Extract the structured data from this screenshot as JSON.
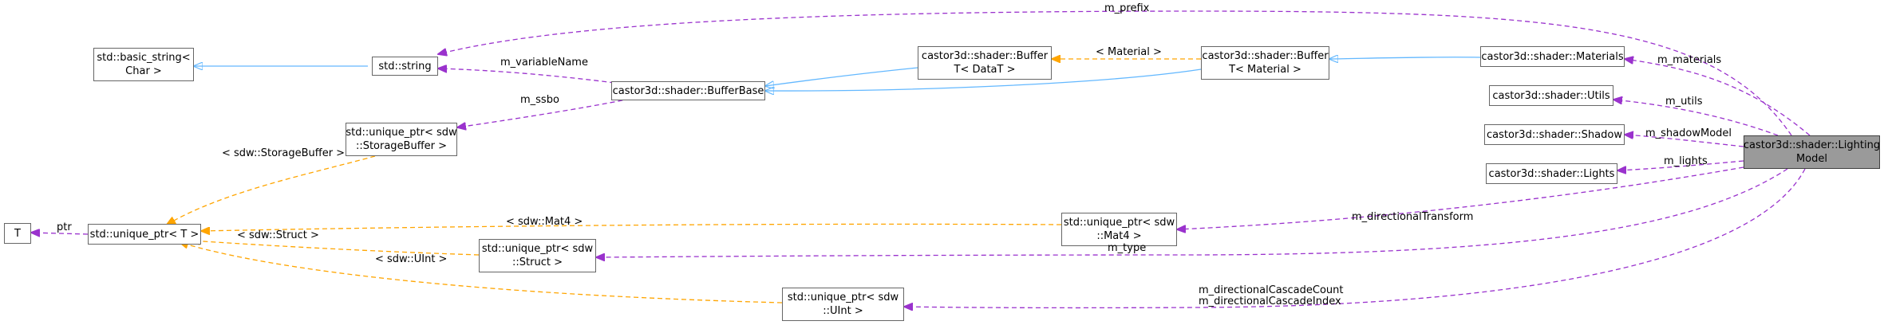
{
  "colors": {
    "inherit": "#63b8ff",
    "usage": "#9a32cd",
    "template": "#ffa500",
    "node_border": "#666666",
    "focus_fill": "#9a9a9a"
  },
  "nodes": {
    "basic_string": [
      "std::basic_string<",
      "Char >"
    ],
    "std_string": [
      "std::string"
    ],
    "buffer_base": [
      "castor3d::shader::BufferBase"
    ],
    "buffer_datat": [
      "castor3d::shader::Buffer",
      "T< DataT >"
    ],
    "buffer_material": [
      "castor3d::shader::Buffer",
      "T< Material >"
    ],
    "materials": [
      "castor3d::shader::Materials"
    ],
    "utils": [
      "castor3d::shader::Utils"
    ],
    "shadow": [
      "castor3d::shader::Shadow"
    ],
    "lights": [
      "castor3d::shader::Lights"
    ],
    "lighting_model": [
      "castor3d::shader::Lighting",
      "Model"
    ],
    "unique_ptr_storagebuffer": [
      "std::unique_ptr< sdw",
      "::StorageBuffer >"
    ],
    "T": [
      "T"
    ],
    "unique_ptr_T": [
      "std::unique_ptr< T >"
    ],
    "unique_ptr_mat4": [
      "std::unique_ptr< sdw",
      "::Mat4 >"
    ],
    "unique_ptr_struct": [
      "std::unique_ptr< sdw",
      "::Struct >"
    ],
    "unique_ptr_uint": [
      "std::unique_ptr< sdw",
      "::UInt >"
    ]
  },
  "edge_labels": {
    "m_prefix": "m_prefix",
    "m_variableName": "m_variableName",
    "m_ssbo": "m_ssbo",
    "material_tpl": "< Material >",
    "m_materials": "m_materials",
    "m_utils": "m_utils",
    "m_shadowModel": "m_shadowModel",
    "m_lights": "m_lights",
    "storagebuffer_tpl": "< sdw::StorageBuffer >",
    "ptr": "ptr",
    "mat4_tpl": "< sdw::Mat4 >",
    "struct_tpl": "< sdw::Struct >",
    "uint_tpl": "< sdw::UInt >",
    "m_directionalTransform": "m_directionalTransform",
    "m_type": "m_type",
    "cascade_count": "m_directionalCascadeCount",
    "cascade_index": "m_directionalCascadeIndex"
  }
}
